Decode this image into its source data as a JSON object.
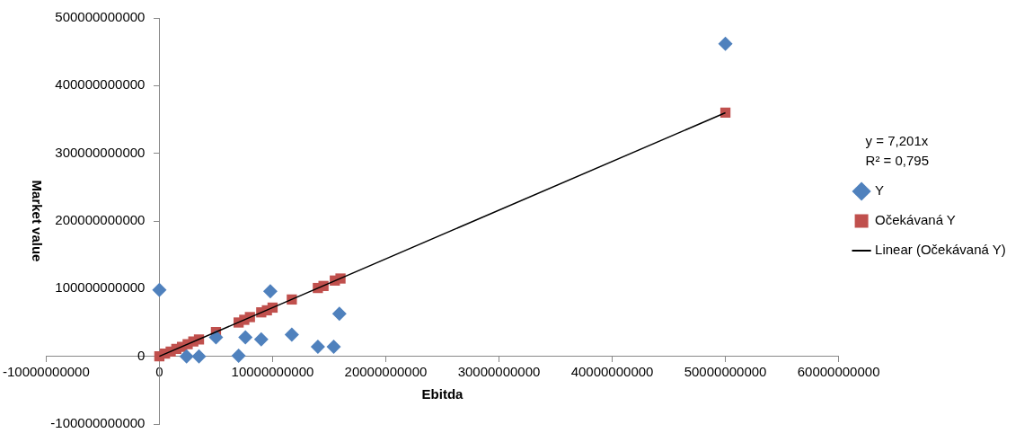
{
  "chart_data": {
    "type": "scatter",
    "xlabel": "Ebitda",
    "ylabel": "Market value",
    "legend": "right",
    "grid": false,
    "xlim": [
      -10000000000,
      60000000000
    ],
    "xticks": [
      -10000000000,
      0,
      10000000000,
      20000000000,
      30000000000,
      40000000000,
      50000000000,
      60000000000
    ],
    "ylim": [
      -100000000000,
      500000000000
    ],
    "yticks": [
      -100000000000,
      0,
      100000000000,
      200000000000,
      300000000000,
      400000000000,
      500000000000
    ],
    "annotations": [
      "y = 7,201x",
      "R² = 0,795"
    ],
    "series": [
      {
        "name": "Y",
        "type": "scatter",
        "marker": "diamond",
        "color": "#4f81bd",
        "x": [
          0,
          2400000000,
          3500000000,
          5000000000,
          7000000000,
          7600000000,
          9000000000,
          9800000000,
          11700000000,
          14000000000,
          15400000000,
          15900000000,
          50000000000
        ],
        "values": [
          98000000000,
          0,
          0,
          28000000000,
          1000000000,
          28000000000,
          25000000000,
          96000000000,
          32000000000,
          14000000000,
          14000000000,
          63000000000,
          462000000000
        ]
      },
      {
        "name": "Očekávaná Y",
        "type": "scatter",
        "marker": "square",
        "color": "#c0504d",
        "x": [
          0,
          500000000,
          1000000000,
          1500000000,
          2000000000,
          2500000000,
          3000000000,
          3500000000,
          5000000000,
          7000000000,
          7500000000,
          8000000000,
          9000000000,
          9500000000,
          10000000000,
          11700000000,
          14000000000,
          14500000000,
          15500000000,
          16000000000,
          50000000000
        ],
        "values": [
          0,
          4000000000,
          7000000000,
          11000000000,
          14000000000,
          18000000000,
          22000000000,
          25000000000,
          36000000000,
          50000000000,
          54000000000,
          58000000000,
          65000000000,
          68000000000,
          72000000000,
          84000000000,
          101000000000,
          104000000000,
          112000000000,
          115000000000,
          360000000000
        ]
      },
      {
        "name": "Linear (Očekávaná Y)",
        "type": "line",
        "marker": "none",
        "line_style": "solid",
        "color": "#000000",
        "x": [
          0,
          50000000000
        ],
        "values": [
          0,
          360000000000
        ]
      }
    ]
  }
}
